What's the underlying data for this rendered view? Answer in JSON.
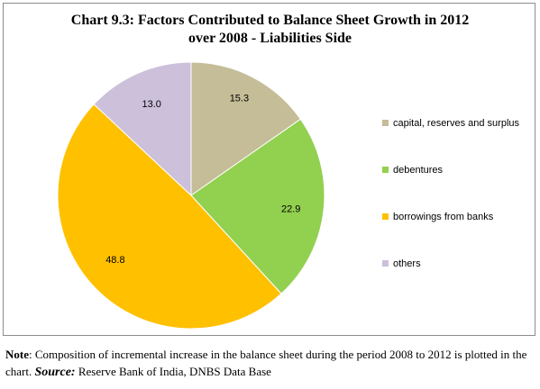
{
  "title": {
    "line1": "Chart 9.3: Factors Contributed to Balance Sheet Growth in 2012",
    "line2": "over 2008 - Liabilities Side"
  },
  "chart_data": {
    "type": "pie",
    "title": "Chart 9.3: Factors Contributed to Balance Sheet Growth in 2012 over 2008 - Liabilities Side",
    "start_angle_deg": 0,
    "direction": "clockwise",
    "legend_position": "right",
    "slices": [
      {
        "name": "capital, reserves and surplus",
        "value": 15.3,
        "label": "15.3",
        "color": "#c4bd97"
      },
      {
        "name": "debentures",
        "value": 22.9,
        "label": "22.9",
        "color": "#92d050"
      },
      {
        "name": "borrowings from banks",
        "value": 48.8,
        "label": "48.8",
        "color": "#ffc000"
      },
      {
        "name": "others",
        "value": 13.0,
        "label": "13.0",
        "color": "#ccc0da"
      }
    ]
  },
  "note": {
    "label": "Note",
    "text": ": Composition of incremental increase in the balance sheet during the period 2008 to 2012 is plotted in the chart.",
    "source_label": "Source:",
    "source_text": "Reserve Bank of India, DNBS Data Base"
  }
}
